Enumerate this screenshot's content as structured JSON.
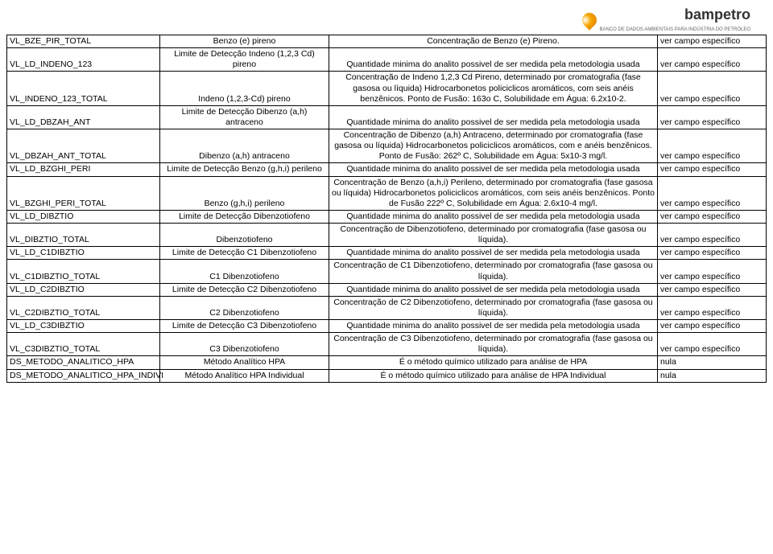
{
  "logo": {
    "brand": "bampetro",
    "sub": "BANCO DE DADOS AMBIENTAIS PARA INDÚSTRIA DO PETRÓLEO"
  },
  "rows": [
    {
      "c1": "VL_BZE_PIR_TOTAL",
      "c2": "Benzo (e) pireno",
      "c3": "Concentração de Benzo (e) Pireno.",
      "c4": "ver campo específico"
    },
    {
      "c1": "VL_LD_INDENO_123",
      "c2": "Limite de Detecção Indeno (1,2,3 Cd) pireno",
      "c3": "Quantidade minima do analito possivel de ser medida pela metodologia usada",
      "c4": "ver campo específico"
    },
    {
      "c1": "VL_INDENO_123_TOTAL",
      "c2": "Indeno (1,2,3-Cd) pireno",
      "c3": "Concentração de Indeno 1,2,3 Cd Pireno, determinado por cromatografia (fase gasosa ou líquida) Hidrocarbonetos policiclicos aromáticos, com seis anéis benzênicos. Ponto de Fusão: 163o C, Solubilidade em Água: 6.2x10-2.",
      "c4": "ver campo específico"
    },
    {
      "c1": "VL_LD_DBZAH_ANT",
      "c2": "Limite de Detecção Dibenzo (a,h) antraceno",
      "c3": "Quantidade minima do analito possivel de ser medida pela metodologia usada",
      "c4": "ver campo específico"
    },
    {
      "c1": "VL_DBZAH_ANT_TOTAL",
      "c2": "Dibenzo (a,h) antraceno",
      "c3": "Concentração de Dibenzo (a,h) Antraceno, determinado por cromatografia (fase gasosa ou líquida) Hidrocarbonetos policiclicos aromáticos, com e anéis benzênicos. Ponto de Fusão: 262º C, Solubilidade em Água: 5x10-3 mg/l.",
      "c4": "ver campo específico"
    },
    {
      "c1": "VL_LD_BZGHI_PERI",
      "c2": "Limite de Detecção Benzo (g,h,i) perileno",
      "c3": "Quantidade minima do analito possivel de ser medida pela metodologia usada",
      "c4": "ver campo específico"
    },
    {
      "c1": "VL_BZGHI_PERI_TOTAL",
      "c2": "Benzo (g,h,i) perileno",
      "c3": "Concentração de Benzo (a,h,i) Perileno, determinado por cromatografia (fase gasosa ou líquida) Hidrocarbonetos policiclicos aromáticos, com seis anéis benzênicos. Ponto de Fusão 222º C, Solubilidade em Água: 2.6x10-4 mg/l.",
      "c4": "ver campo específico"
    },
    {
      "c1": "VL_LD_DIBZTIO",
      "c2": "Limite de Detecção Dibenzotiofeno",
      "c3": "Quantidade minima do analito possivel de ser medida pela metodologia usada",
      "c4": "ver campo específico"
    },
    {
      "c1": "VL_DIBZTIO_TOTAL",
      "c2": "Dibenzotiofeno",
      "c3": "Concentração de Dibenzotiofeno, determinado por cromatografia (fase gasosa ou líquida).",
      "c4": "ver campo específico"
    },
    {
      "c1": "VL_LD_C1DIBZTIO",
      "c2": "Limite de Detecção C1 Dibenzotiofeno",
      "c3": "Quantidade minima do analito possivel de ser medida pela metodologia usada",
      "c4": "ver campo específico"
    },
    {
      "c1": "VL_C1DIBZTIO_TOTAL",
      "c2": "C1 Dibenzotiofeno",
      "c3": "Concentração de C1 Dibenzotiofeno, determinado por cromatografia (fase gasosa ou líquida).",
      "c4": "ver campo específico"
    },
    {
      "c1": "VL_LD_C2DIBZTIO",
      "c2": "Limite de Detecção C2 Dibenzotiofeno",
      "c3": "Quantidade minima do analito possivel de ser medida pela metodologia usada",
      "c4": "ver campo específico"
    },
    {
      "c1": "VL_C2DIBZTIO_TOTAL",
      "c2": "C2 Dibenzotiofeno",
      "c3": "Concentração de C2 Dibenzotiofeno, determinado por cromatografia (fase gasosa ou líquida).",
      "c4": "ver campo específico"
    },
    {
      "c1": "VL_LD_C3DIBZTIO",
      "c2": "Limite de Detecção C3 Dibenzotiofeno",
      "c3": "Quantidade minima do analito possivel de ser medida pela metodologia usada",
      "c4": "ver campo específico"
    },
    {
      "c1": "VL_C3DIBZTIO_TOTAL",
      "c2": "C3 Dibenzotiofeno",
      "c3": "Concentração de C3 Dibenzotiofeno, determinado por cromatografia (fase gasosa ou líquida).",
      "c4": "ver campo específico"
    },
    {
      "c1": "DS_METODO_ANALITICO_HPA",
      "c2": "Método Analítico HPA",
      "c3": "É o método químico utilizado para análise de HPA",
      "c4": "nula"
    },
    {
      "c1": "DS_METODO_ANALITICO_HPA_INDIVI",
      "c2": "Método Analítico HPA Individual",
      "c3": "É o método químico utilizado para análise de HPA Individual",
      "c4": "nula"
    }
  ]
}
